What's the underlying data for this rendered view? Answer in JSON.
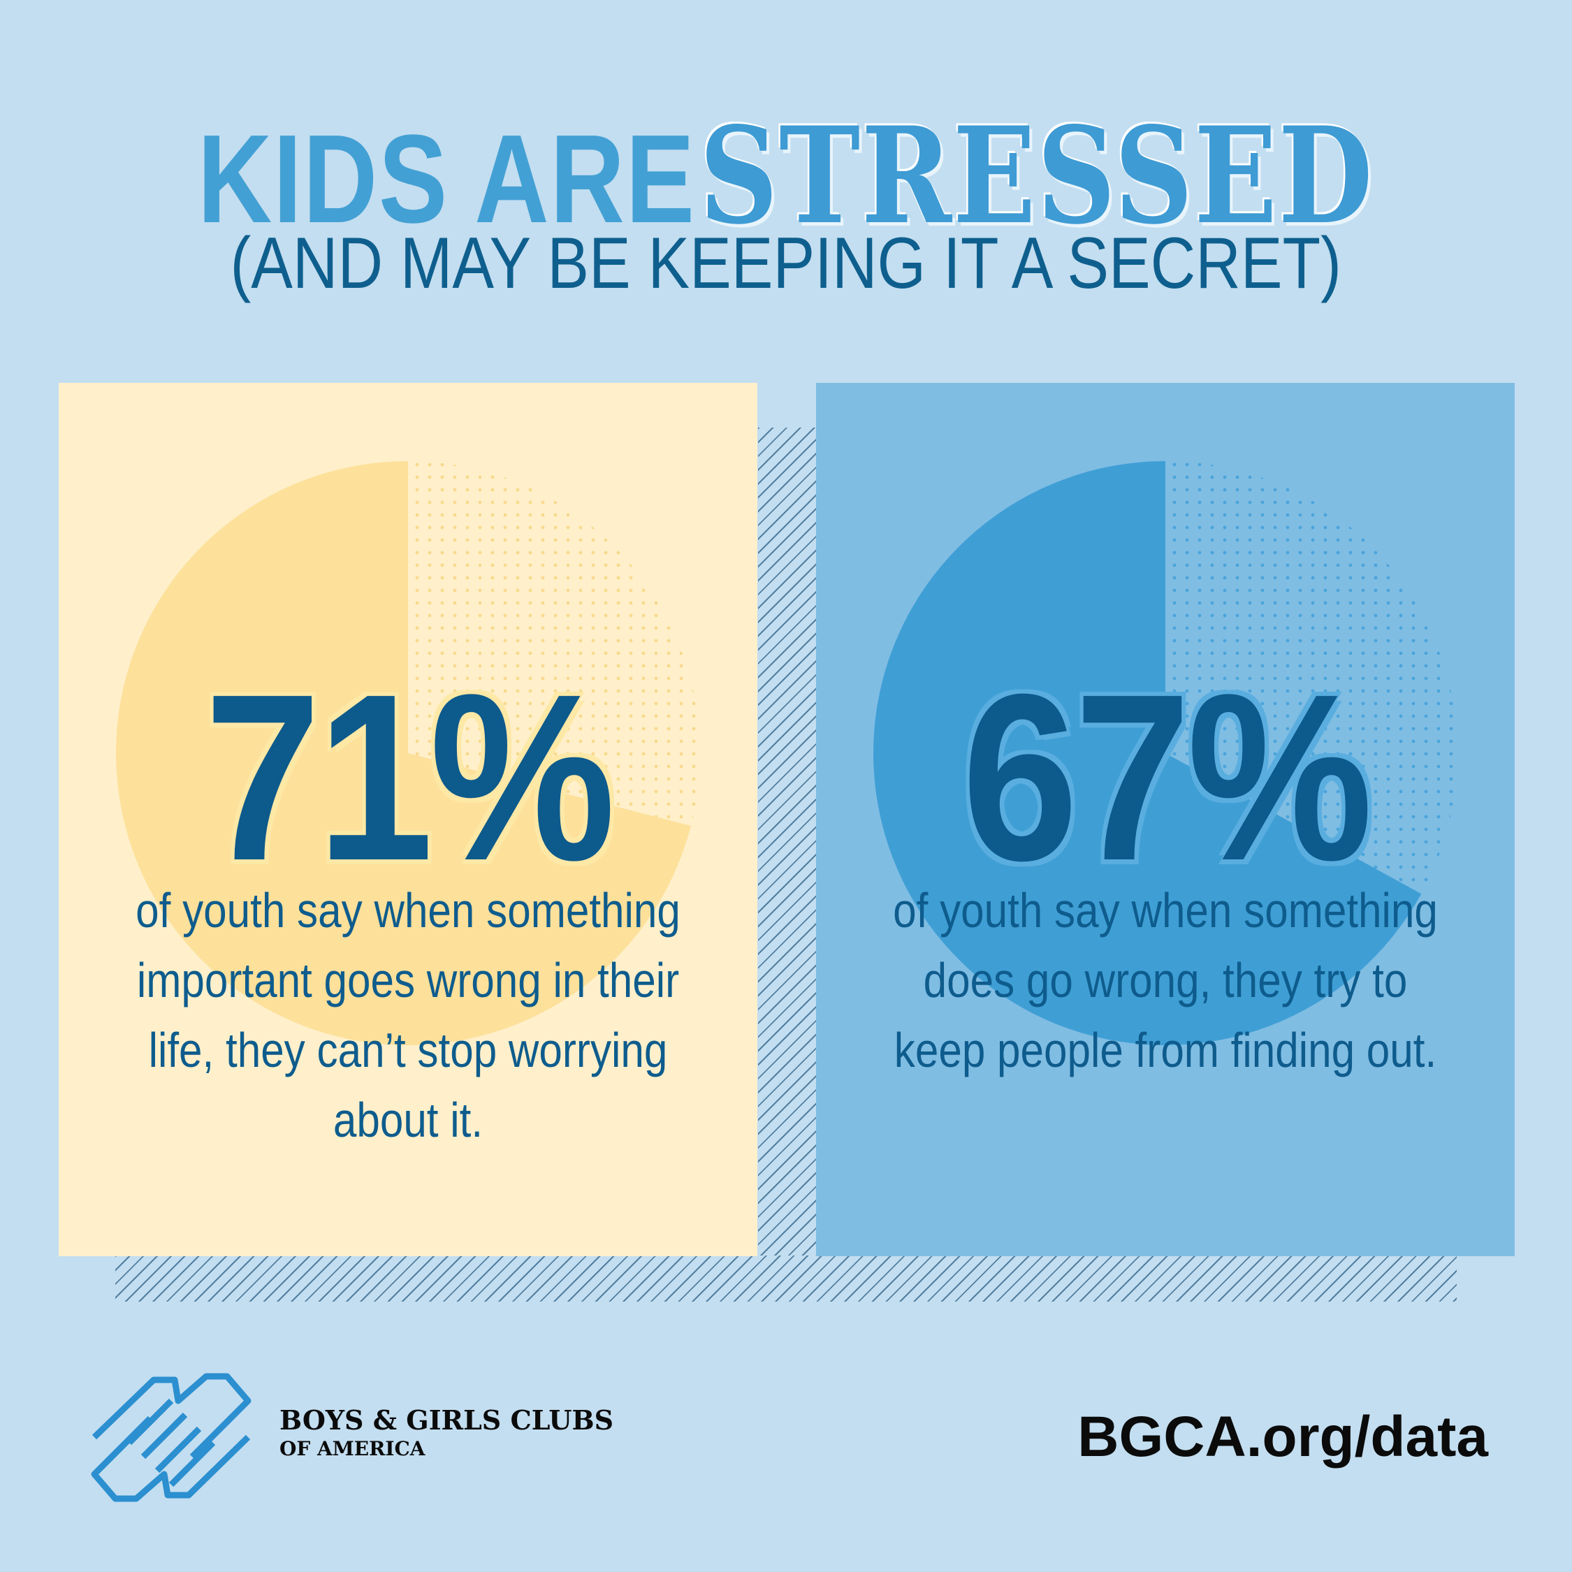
{
  "header": {
    "title_plain": "KIDS ARE",
    "title_accent": "STRESSED",
    "subtitle": "(AND MAY BE KEEPING IT A SECRET)"
  },
  "colors": {
    "background": "#c3def0",
    "left_panel": "#fff0cb",
    "left_pie": "#fde09a",
    "right_panel": "#80bde3",
    "right_pie": "#3f9fd5",
    "text_dark": "#0d5a8c"
  },
  "chart_data": [
    {
      "type": "pie",
      "values": [
        71,
        29
      ],
      "label": "71%",
      "description": "of youth say when something important goes wrong in their life, they can’t stop worrying about it."
    },
    {
      "type": "pie",
      "values": [
        67,
        33
      ],
      "label": "67%",
      "description": "of youth say when something does go wrong, they try to keep people from finding out."
    }
  ],
  "footer": {
    "logo_icon": "clasped-hands-logo-icon",
    "org_line1": "BOYS & GIRLS CLUBS",
    "org_line2": "OF AMERICA",
    "website": "BGCA.org/data"
  }
}
